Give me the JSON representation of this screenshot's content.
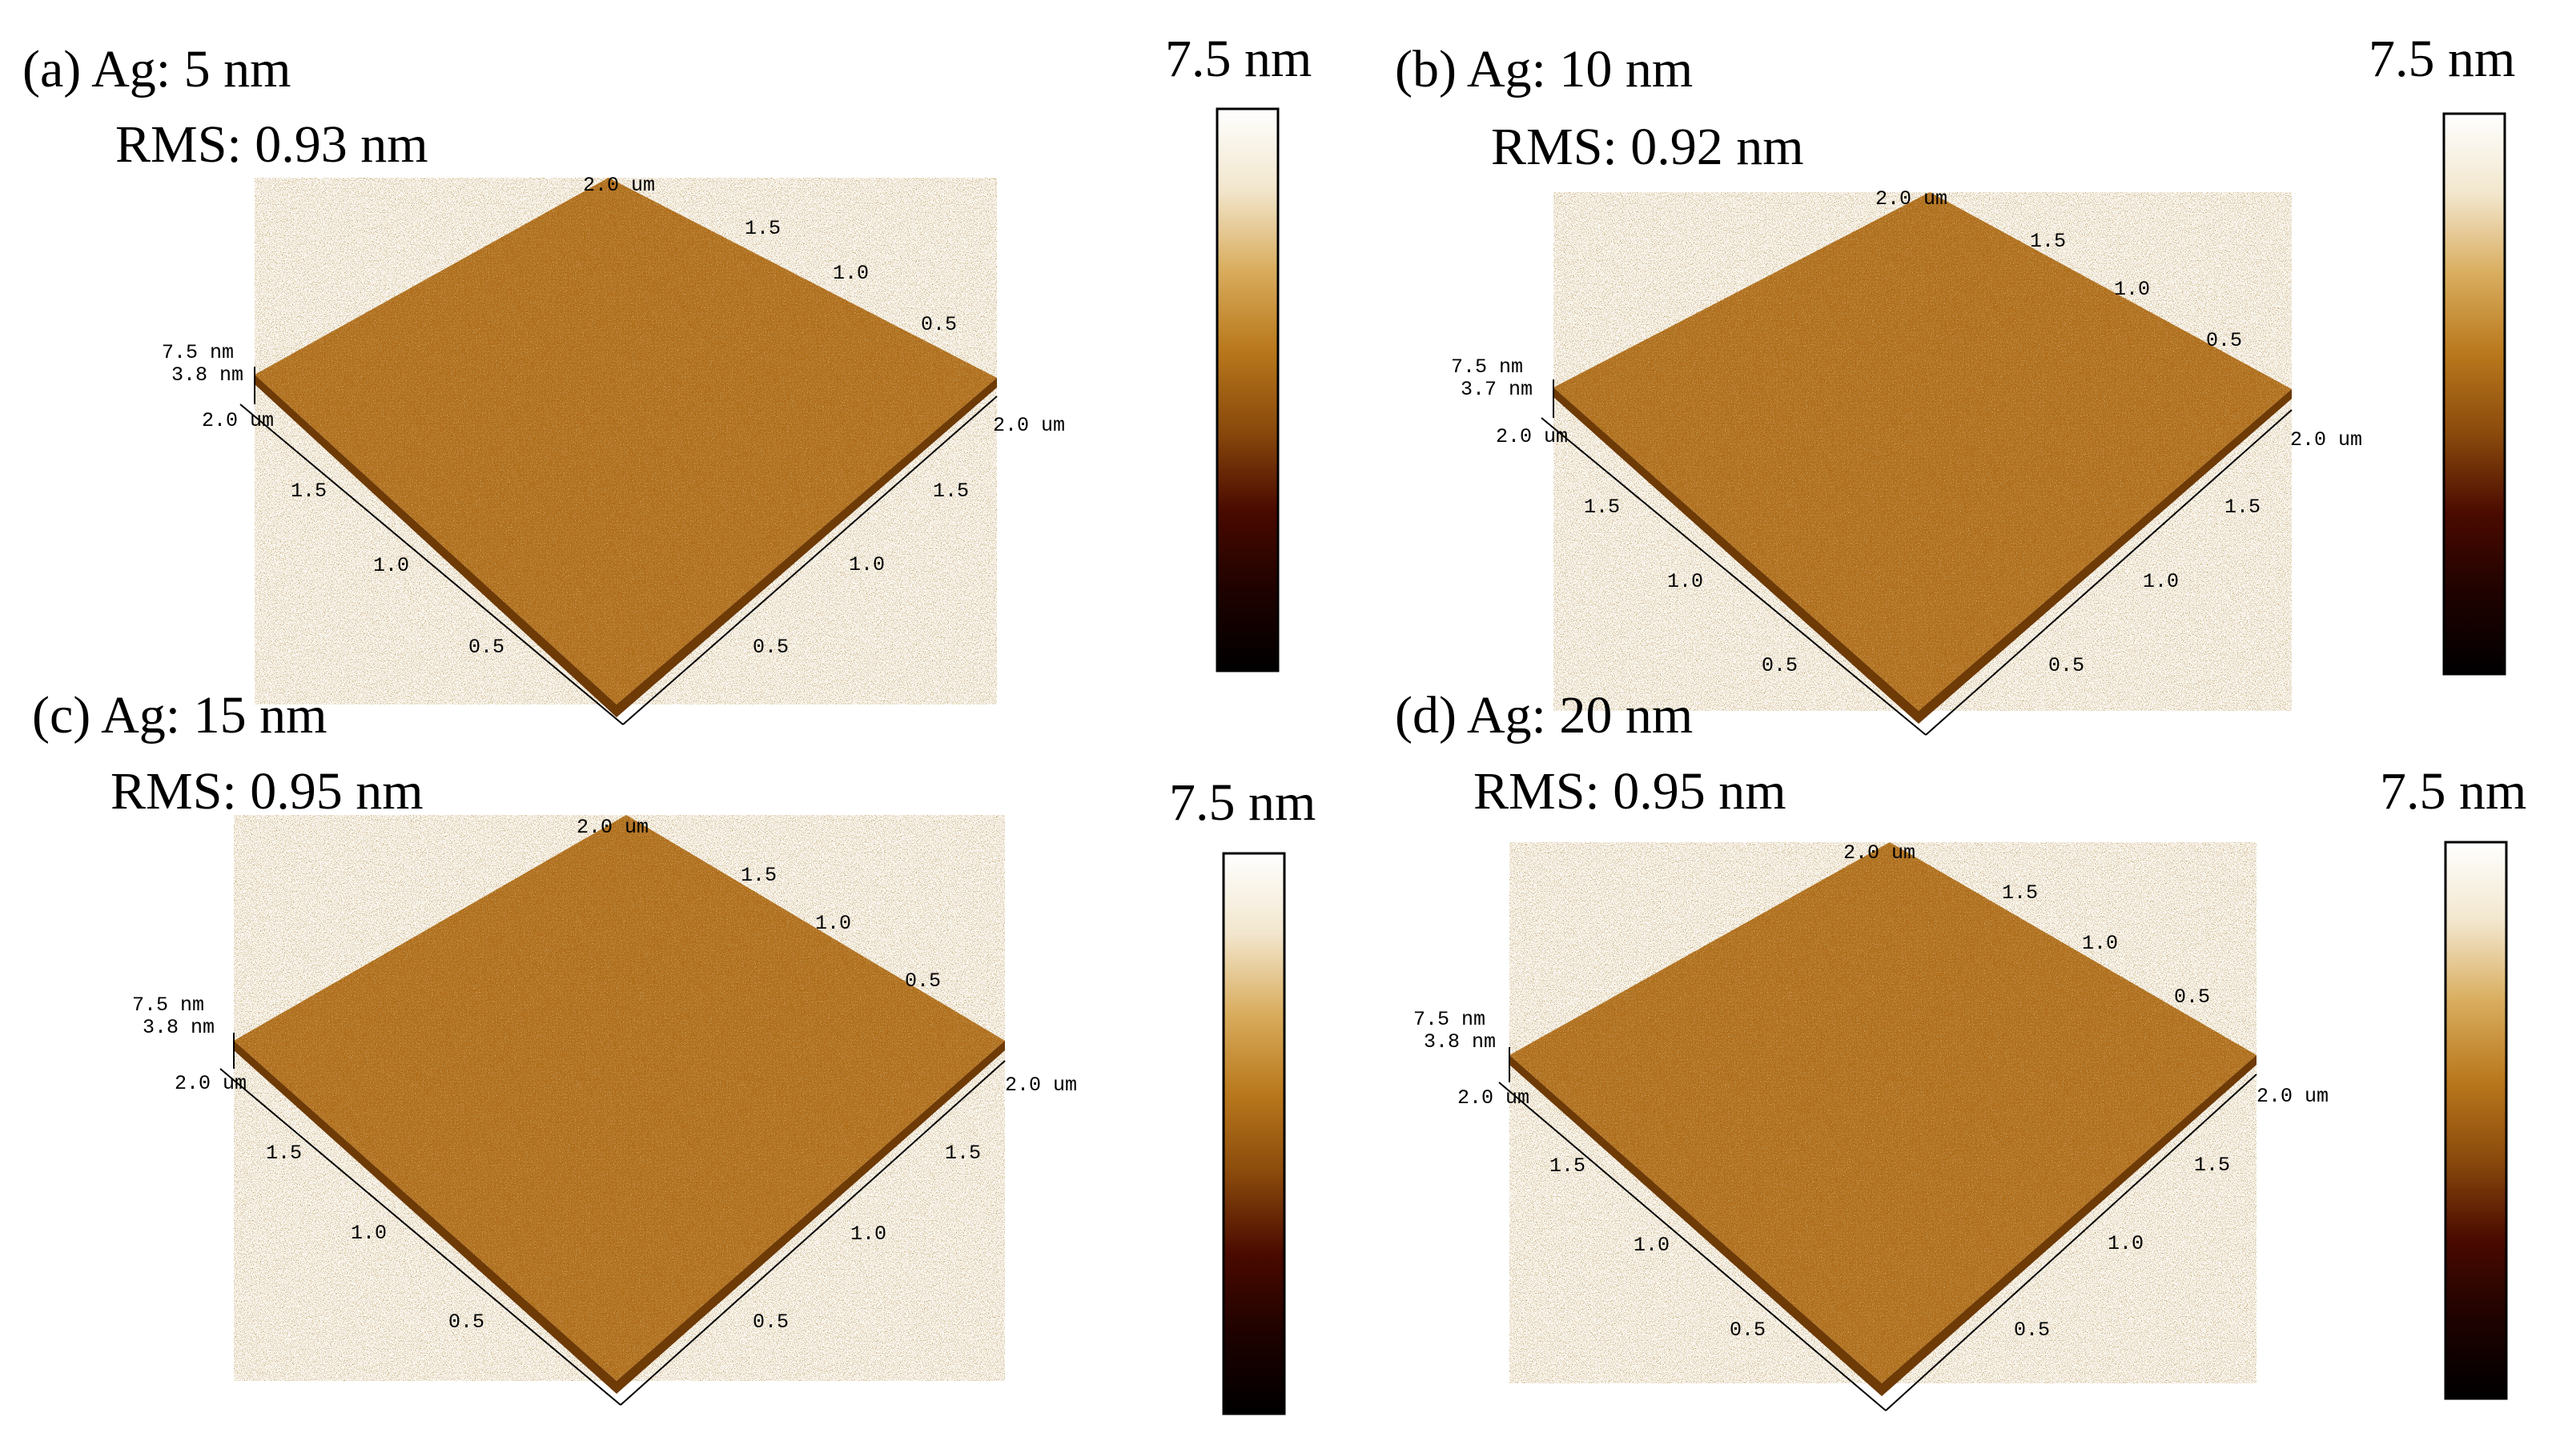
{
  "colors": {
    "colormap": [
      "#000000",
      "#1e0200",
      "#4a0a00",
      "#8a4a0c",
      "#b9781c",
      "#d9ad5e",
      "#f2e6cd",
      "#ffffff"
    ],
    "surface_base": "#b06a16",
    "surface_dark": "#6e3a06",
    "surface_highlight": "#f5dca0"
  },
  "panels": [
    {
      "id": "a",
      "label_text": "(a)  Ag: 5 nm",
      "rms_text": "RMS: 0.93 nm",
      "colorbar_max": "7.5 nm",
      "z_labels": [
        "7.5 nm",
        "3.8 nm"
      ],
      "back_labels": [
        "2.0 um",
        "1.5",
        "1.0",
        "0.5"
      ],
      "left_labels": [
        "2.0 um",
        "1.5",
        "1.0",
        "0.5"
      ],
      "right_labels": [
        "2.0 um",
        "1.5",
        "1.0",
        "0.5"
      ]
    },
    {
      "id": "b",
      "label_text": "(b) Ag: 10 nm",
      "rms_text": "RMS: 0.92 nm",
      "colorbar_max": "7.5 nm",
      "z_labels": [
        "7.5 nm",
        "3.7 nm"
      ],
      "back_labels": [
        "2.0 um",
        "1.5",
        "1.0",
        "0.5"
      ],
      "left_labels": [
        "2.0 um",
        "1.5",
        "1.0",
        "0.5"
      ],
      "right_labels": [
        "2.0 um",
        "1.5",
        "1.0",
        "0.5"
      ]
    },
    {
      "id": "c",
      "label_text": "(c) Ag: 15 nm",
      "rms_text": "RMS: 0.95 nm",
      "colorbar_max": "7.5 nm",
      "z_labels": [
        "7.5 nm",
        "3.8 nm"
      ],
      "back_labels": [
        "2.0 um",
        "1.5",
        "1.0",
        "0.5"
      ],
      "left_labels": [
        "2.0 um",
        "1.5",
        "1.0",
        "0.5"
      ],
      "right_labels": [
        "2.0 um",
        "1.5",
        "1.0",
        "0.5"
      ]
    },
    {
      "id": "d",
      "label_text": "(d) Ag: 20 nm",
      "rms_text": "RMS: 0.95 nm",
      "colorbar_max": "7.5 nm",
      "z_labels": [
        "7.5 nm",
        "3.8 nm"
      ],
      "back_labels": [
        "2.0 um",
        "1.5",
        "1.0",
        "0.5"
      ],
      "left_labels": [
        "2.0 um",
        "1.5",
        "1.0",
        "0.5"
      ],
      "right_labels": [
        "2.0 um",
        "1.5",
        "1.0",
        "0.5"
      ]
    }
  ]
}
